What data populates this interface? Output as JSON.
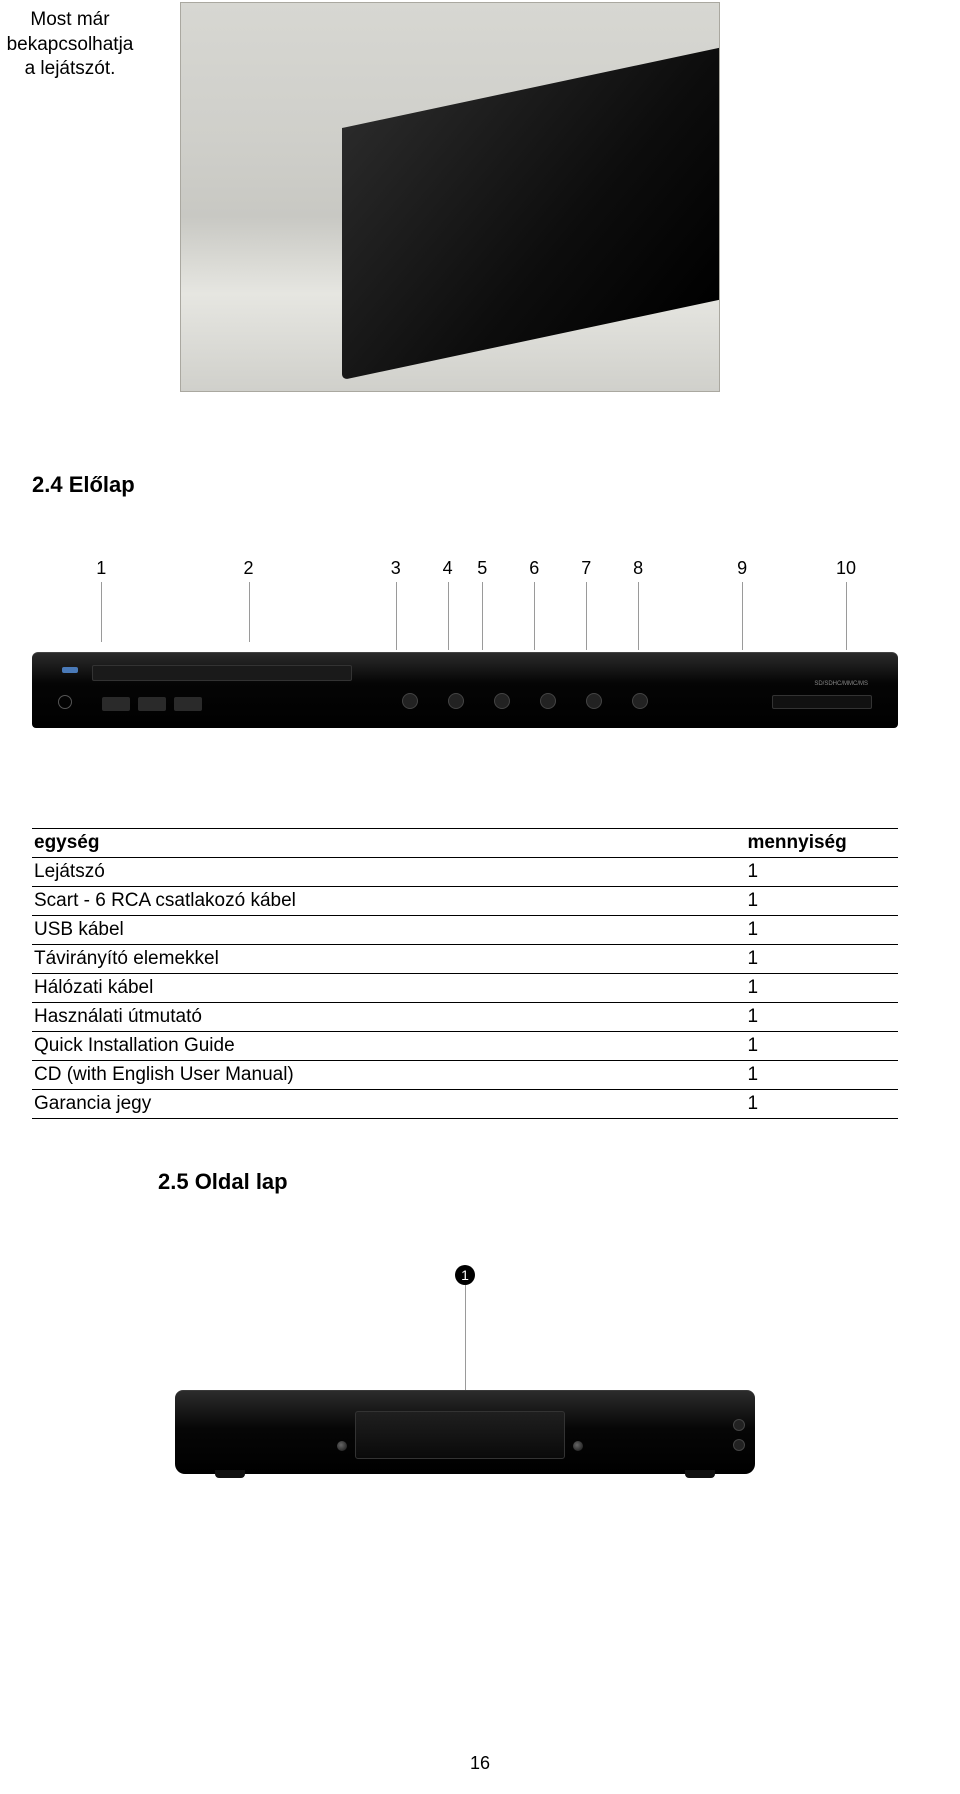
{
  "intro": {
    "line1": "Most már",
    "line2": "bekapcsolhatja",
    "line3": "a lejátszót."
  },
  "section_front": "2.4 Előlap",
  "callouts": {
    "labels": [
      "1",
      "2",
      "3",
      "4",
      "5",
      "6",
      "7",
      "8",
      "9",
      "10"
    ],
    "positions_pct": [
      8,
      25,
      42,
      48,
      52,
      58,
      64,
      70,
      82,
      94
    ],
    "line_heights": [
      60,
      60,
      68,
      68,
      68,
      68,
      68,
      68,
      68,
      68
    ]
  },
  "front_panel": {
    "slot_label": "SD/SDHC/MMC/MS"
  },
  "table": {
    "header_unit": "egység",
    "header_qty": "mennyiség",
    "rows": [
      {
        "unit": "Lejátszó",
        "qty": "1"
      },
      {
        "unit": "Scart - 6 RCA csatlakozó kábel",
        "qty": "1"
      },
      {
        "unit": "USB kábel",
        "qty": "1"
      },
      {
        "unit": "Távirányító elemekkel",
        "qty": "1"
      },
      {
        "unit": "Hálózati kábel",
        "qty": "1"
      },
      {
        "unit": "Használati útmutató",
        "qty": "1"
      },
      {
        "unit": "Quick Installation Guide",
        "qty": "1"
      },
      {
        "unit": "CD (with English User Manual)",
        "qty": "1"
      },
      {
        "unit": "Garancia jegy",
        "qty": "1"
      }
    ]
  },
  "section_side": "2.5 Oldal lap",
  "side_marker": "1",
  "page_number": "16"
}
